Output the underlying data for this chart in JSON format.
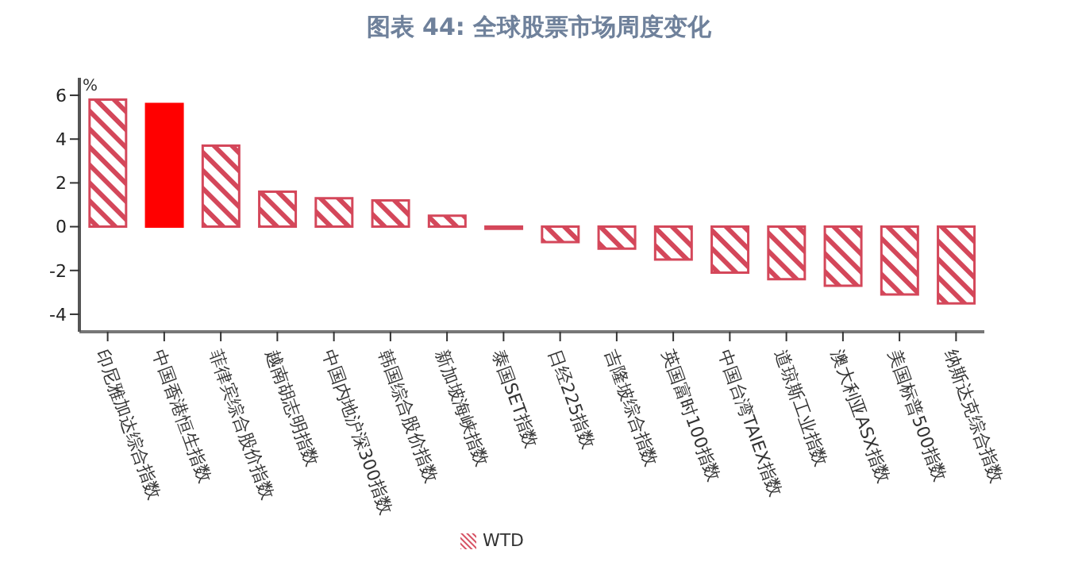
{
  "chart_data": {
    "type": "bar",
    "title": "图表 44: 全球股票市场周度变化",
    "ylabel": "%",
    "categories": [
      "印尼雅加达综合指数",
      "中国香港恒生指数",
      "菲律宾综合股价指数",
      "越南胡志明指数",
      "中国内地沪深300指数",
      "韩国综合股价指数",
      "新加坡海峡指数",
      "泰国SET指数",
      "日经225指数",
      "吉隆坡综合指数",
      "英国富时100指数",
      "中国台湾TAIEX指数",
      "道琼斯工业指数",
      "澳大利亚ASX指数",
      "美国标普500指数",
      "纳斯达克综合指数"
    ],
    "series": [
      {
        "name": "WTD",
        "color": "#d4475a",
        "colors": [
          "#d4475a",
          "#ff0000",
          "#d4475a",
          "#d4475a",
          "#d4475a",
          "#d4475a",
          "#d4475a",
          "#d4475a",
          "#d4475a",
          "#d4475a",
          "#d4475a",
          "#d4475a",
          "#d4475a",
          "#d4475a",
          "#d4475a",
          "#d4475a"
        ],
        "values": [
          5.8,
          5.6,
          3.7,
          1.6,
          1.3,
          1.2,
          0.5,
          -0.1,
          -0.7,
          -1.0,
          -1.5,
          -2.1,
          -2.4,
          -2.7,
          -3.1,
          -3.5
        ]
      }
    ],
    "ylim": [
      -4.8,
      6.8
    ],
    "yticks": [
      -4,
      -2,
      0,
      2,
      4,
      6
    ],
    "grid": false,
    "legend": "bottom"
  }
}
